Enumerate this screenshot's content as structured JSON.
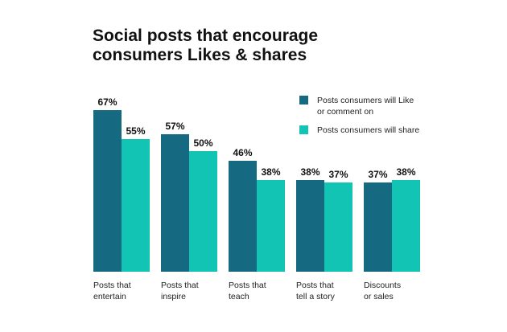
{
  "chart_data": {
    "type": "bar",
    "title_lines": [
      "Social posts that encourage",
      "consumers Likes & shares"
    ],
    "categories": [
      [
        "Posts that",
        "entertain"
      ],
      [
        "Posts that",
        "inspire"
      ],
      [
        "Posts that",
        "teach"
      ],
      [
        "Posts that",
        "tell a story"
      ],
      [
        "Discounts",
        "or sales"
      ]
    ],
    "series": [
      {
        "name_lines": [
          "Posts consumers will Like",
          "or comment on"
        ],
        "color": "#156a82",
        "values": [
          67,
          57,
          46,
          38,
          37
        ],
        "labels": [
          "67%",
          "57%",
          "46%",
          "38%",
          "37%"
        ]
      },
      {
        "name_lines": [
          "Posts consumers will share"
        ],
        "color": "#11c4b4",
        "values": [
          55,
          50,
          38,
          37,
          38
        ],
        "labels": [
          "55%",
          "50%",
          "38%",
          "37%",
          "38%"
        ]
      }
    ],
    "ylim": [
      0,
      100
    ],
    "grid": false,
    "legend_position": "top-right"
  }
}
